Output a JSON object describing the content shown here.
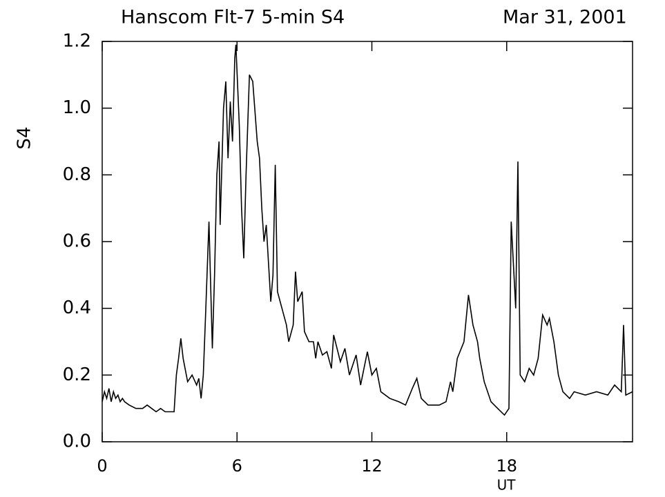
{
  "chart_data": {
    "type": "line",
    "title": "Hanscom Flt-7  5-min S4",
    "date": "Mar 31, 2001",
    "xlabel": "UT",
    "ylabel": "S4",
    "xlim": [
      0,
      23.6
    ],
    "ylim": [
      0,
      1.2
    ],
    "xticks": [
      0,
      6,
      12,
      18
    ],
    "yticks": [
      {
        "value": 0,
        "label": "0.0"
      },
      0.2,
      0.4,
      0.6,
      0.8,
      {
        "value": 1,
        "label": "1.0"
      },
      1.2
    ],
    "series": [
      {
        "name": "S4",
        "color": "#000000",
        "x": [
          0,
          0.1,
          0.2,
          0.3,
          0.4,
          0.5,
          0.6,
          0.7,
          0.8,
          0.9,
          1.0,
          1.2,
          1.5,
          1.8,
          2.0,
          2.2,
          2.4,
          2.6,
          2.8,
          3.0,
          3.2,
          3.3,
          3.4,
          3.5,
          3.6,
          3.8,
          4.0,
          4.2,
          4.3,
          4.4,
          4.5,
          4.6,
          4.75,
          4.9,
          5.0,
          5.1,
          5.2,
          5.25,
          5.4,
          5.5,
          5.6,
          5.7,
          5.8,
          5.9,
          5.95,
          6.1,
          6.2,
          6.3,
          6.4,
          6.55,
          6.7,
          6.9,
          7.0,
          7.1,
          7.2,
          7.3,
          7.5,
          7.6,
          7.7,
          7.8,
          8.0,
          8.2,
          8.3,
          8.5,
          8.6,
          8.7,
          8.9,
          9.0,
          9.2,
          9.4,
          9.5,
          9.6,
          9.8,
          10.0,
          10.2,
          10.3,
          10.6,
          10.8,
          11.0,
          11.3,
          11.5,
          11.8,
          12.0,
          12.2,
          12.4,
          12.8,
          13.2,
          13.5,
          13.8,
          14.0,
          14.2,
          14.5,
          15.0,
          15.3,
          15.5,
          15.6,
          15.8,
          16.1,
          16.3,
          16.5,
          16.7,
          16.8,
          17.0,
          17.3,
          17.6,
          17.9,
          18.1,
          18.2,
          18.4,
          18.5,
          18.6,
          18.8,
          19.0,
          19.2,
          19.4,
          19.6,
          19.8,
          19.9,
          20.1,
          20.3,
          20.5,
          20.8,
          21.0,
          21.5,
          22.0,
          22.5,
          22.8,
          23.1,
          23.2,
          23.3,
          23.6
        ],
        "values": [
          0.12,
          0.15,
          0.13,
          0.16,
          0.12,
          0.15,
          0.13,
          0.14,
          0.12,
          0.13,
          0.12,
          0.11,
          0.1,
          0.1,
          0.11,
          0.1,
          0.09,
          0.1,
          0.09,
          0.09,
          0.09,
          0.2,
          0.25,
          0.31,
          0.25,
          0.18,
          0.2,
          0.17,
          0.19,
          0.13,
          0.2,
          0.38,
          0.66,
          0.28,
          0.5,
          0.8,
          0.9,
          0.65,
          1.0,
          1.08,
          0.85,
          1.02,
          0.9,
          1.15,
          1.19,
          0.95,
          0.7,
          0.55,
          0.8,
          1.1,
          1.08,
          0.9,
          0.85,
          0.7,
          0.6,
          0.65,
          0.42,
          0.5,
          0.83,
          0.45,
          0.4,
          0.35,
          0.3,
          0.35,
          0.51,
          0.42,
          0.45,
          0.33,
          0.3,
          0.3,
          0.25,
          0.3,
          0.26,
          0.27,
          0.22,
          0.32,
          0.24,
          0.28,
          0.2,
          0.26,
          0.17,
          0.27,
          0.2,
          0.22,
          0.15,
          0.13,
          0.12,
          0.11,
          0.16,
          0.19,
          0.13,
          0.11,
          0.11,
          0.12,
          0.18,
          0.15,
          0.25,
          0.3,
          0.44,
          0.35,
          0.3,
          0.25,
          0.18,
          0.12,
          0.1,
          0.08,
          0.1,
          0.66,
          0.4,
          0.84,
          0.2,
          0.18,
          0.22,
          0.2,
          0.25,
          0.38,
          0.35,
          0.37,
          0.3,
          0.2,
          0.15,
          0.13,
          0.15,
          0.14,
          0.15,
          0.14,
          0.17,
          0.15,
          0.35,
          0.14,
          0.15
        ]
      }
    ]
  }
}
